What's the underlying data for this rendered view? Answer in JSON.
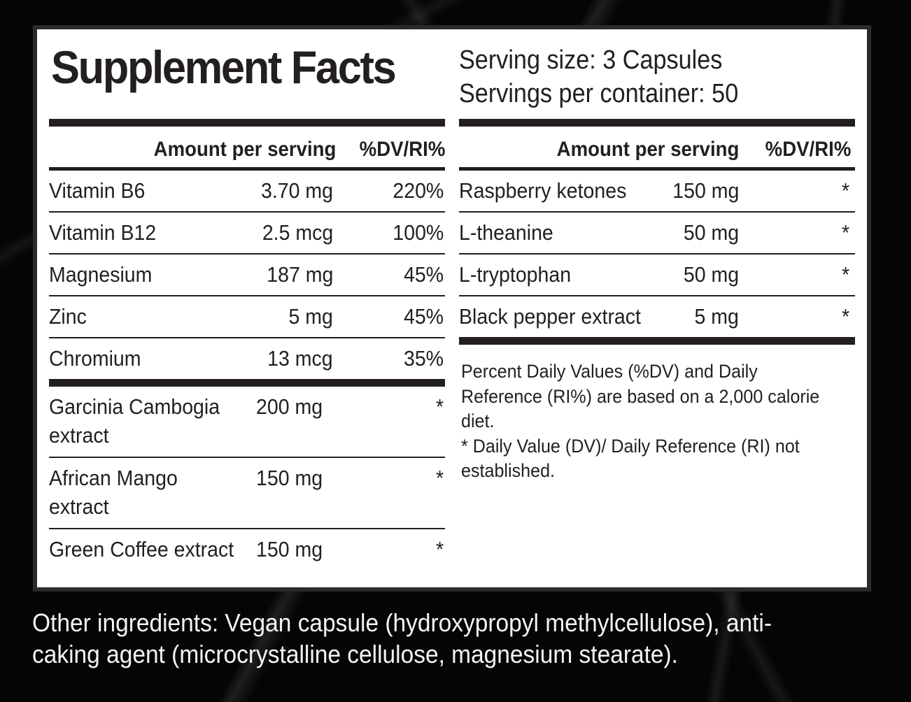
{
  "label": {
    "title": "Supplement Facts",
    "serving_size": "Serving size: 3 Capsules",
    "servings_per_container": "Servings per container: 50"
  },
  "left_table": {
    "header": {
      "amount": "Amount per serving",
      "dv": "%DV/RI%"
    },
    "rows": [
      {
        "name": "Vitamin B6",
        "amount": "3.70 mg",
        "dv": "220%"
      },
      {
        "name": "Vitamin B12",
        "amount": "2.5 mcg",
        "dv": "100%"
      },
      {
        "name": "Magnesium",
        "amount": "187 mg",
        "dv": "45%"
      },
      {
        "name": "Zinc",
        "amount": "5 mg",
        "dv": "45%"
      },
      {
        "name": "Chromium",
        "amount": "13 mcg",
        "dv": "35%"
      },
      {
        "name": "Garcinia Cambogia extract",
        "amount": "200 mg",
        "dv": "*"
      },
      {
        "name": "African Mango extract",
        "amount": "150 mg",
        "dv": "*"
      },
      {
        "name": "Green Coffee extract",
        "amount": "150 mg",
        "dv": "*"
      }
    ]
  },
  "right_table": {
    "header": {
      "amount": "Amount per serving",
      "dv": "%DV/RI%"
    },
    "rows": [
      {
        "name": "Raspberry ketones",
        "amount": "150 mg",
        "dv": "*"
      },
      {
        "name": "L-theanine",
        "amount": "50 mg",
        "dv": "*"
      },
      {
        "name": "L-tryptophan",
        "amount": "50 mg",
        "dv": "*"
      },
      {
        "name": "Black pepper extract",
        "amount": "5 mg",
        "dv": "*"
      }
    ]
  },
  "footnotes": {
    "line1": "Percent Daily Values (%DV) and Daily Reference (RI%) are based on a 2,000 calorie diet.",
    "line2": "* Daily Value (DV)/ Daily Reference (RI) not established."
  },
  "other_ingredients": "Other ingredients: Vegan capsule (hydroxypropyl methylcellulose), anti-caking agent (microcrystalline cellulose, magnesium stearate)."
}
